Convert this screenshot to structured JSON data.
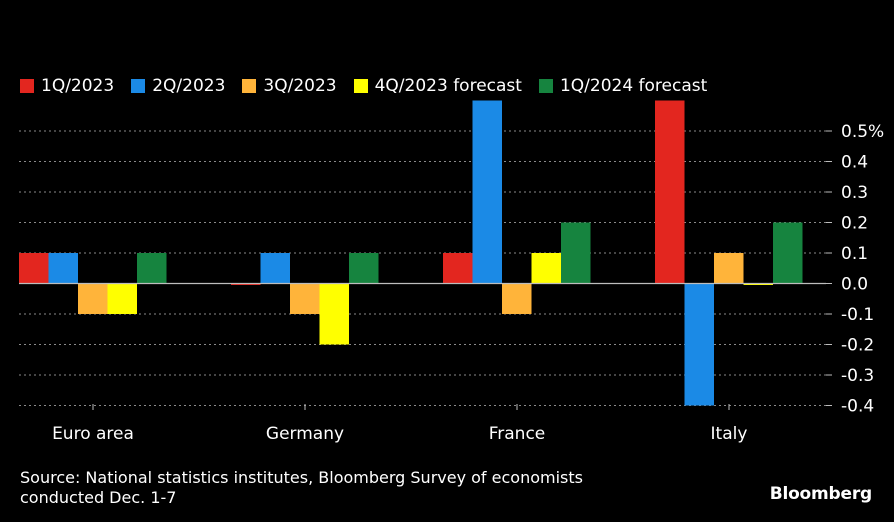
{
  "chart_data": {
    "type": "bar",
    "categories": [
      "Euro area",
      "Germany",
      "France",
      "Italy"
    ],
    "series": [
      {
        "name": "1Q/2023",
        "color": "#e3261f",
        "values": [
          0.1,
          -0.003,
          0.1,
          0.6
        ]
      },
      {
        "name": "2Q/2023",
        "color": "#1b8ae6",
        "values": [
          0.1,
          0.1,
          0.6,
          -0.4
        ]
      },
      {
        "name": "3Q/2023",
        "color": "#ffb43a",
        "values": [
          -0.1,
          -0.1,
          -0.1,
          0.1
        ]
      },
      {
        "name": "4Q/2023 forecast",
        "color": "#ffff00",
        "values": [
          -0.1,
          -0.2,
          0.1,
          -0.003
        ]
      },
      {
        "name": "1Q/2024 forecast",
        "color": "#16843f",
        "values": [
          0.1,
          0.1,
          0.2,
          0.2
        ]
      }
    ],
    "y_ticks": [
      "0.5%",
      "0.4",
      "0.3",
      "0.2",
      "0.1",
      "0.0",
      "-0.1",
      "-0.2",
      "-0.3",
      "-0.4"
    ],
    "y_tick_values": [
      0.5,
      0.4,
      0.3,
      0.2,
      0.1,
      0.0,
      -0.1,
      -0.2,
      -0.3,
      -0.4
    ],
    "ylim": [
      -0.4,
      0.6
    ],
    "grid": true,
    "legend_position": "top-left"
  },
  "footer": {
    "source_line1": "Source: National statistics institutes, Bloomberg Survey of economists",
    "source_line2": "conducted Dec. 1-7",
    "brand": "Bloomberg"
  }
}
